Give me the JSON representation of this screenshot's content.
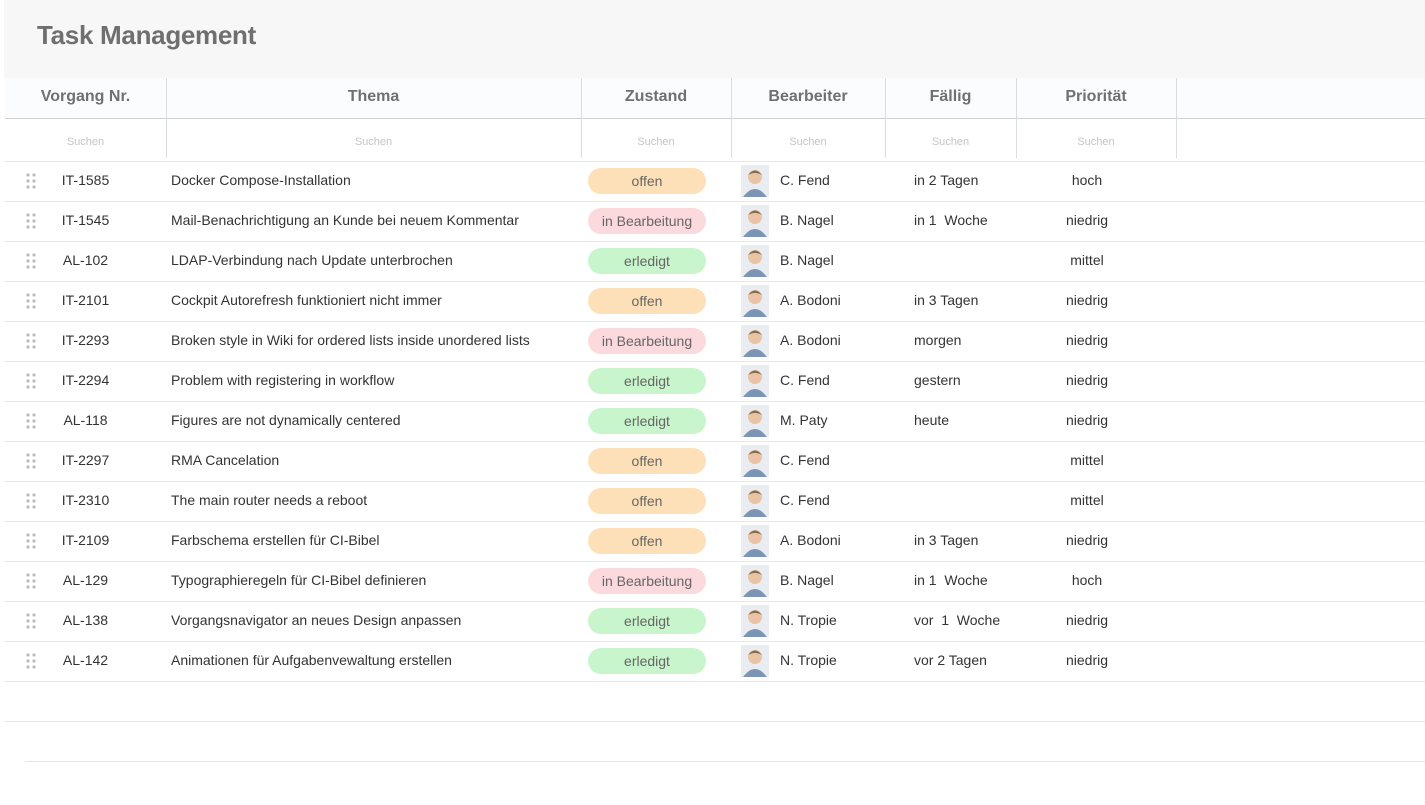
{
  "header": {
    "title": "Task Management"
  },
  "table": {
    "columns": [
      "Vorgang Nr.",
      "Thema",
      "Zustand",
      "Bearbeiter",
      "Fällig",
      "Priorität"
    ],
    "filters": [
      "Suchen",
      "Suchen",
      "Suchen",
      "Suchen",
      "Suchen",
      "Suchen"
    ],
    "rows": [
      {
        "id": "IT-1585",
        "topic": "Docker Compose-Installation",
        "status": "offen",
        "status_color": "#fde0b8",
        "assignee": "C. Fend",
        "due": "in 2 Tagen",
        "priority": "hoch"
      },
      {
        "id": "IT-1545",
        "topic": "Mail-Benachrichtigung an Kunde bei neuem Kommentar",
        "status": "in Bearbeitung",
        "status_color": "#fbd9dd",
        "assignee": "B. Nagel",
        "due": "in 1  Woche",
        "priority": "niedrig"
      },
      {
        "id": "AL-102",
        "topic": "LDAP-Verbindung nach Update unterbrochen",
        "status": "erledigt",
        "status_color": "#c9f5cc",
        "assignee": "B. Nagel",
        "due": null,
        "priority": "mittel"
      },
      {
        "id": "IT-2101",
        "topic": "Cockpit Autorefresh funktioniert nicht immer",
        "status": "offen",
        "status_color": "#fde0b8",
        "assignee": "A. Bodoni",
        "due": "in 3 Tagen",
        "priority": "niedrig"
      },
      {
        "id": "IT-2293",
        "topic": "Broken style in Wiki for ordered lists inside unordered lists",
        "status": "in Bearbeitung",
        "status_color": "#fbd9dd",
        "assignee": "A. Bodoni",
        "due": "morgen",
        "priority": "niedrig"
      },
      {
        "id": "IT-2294",
        "topic": "Problem with registering in workflow",
        "status": "erledigt",
        "status_color": "#c9f5cc",
        "assignee": "C. Fend",
        "due": "gestern",
        "priority": "niedrig"
      },
      {
        "id": "AL-118",
        "topic": "Figures are not dynamically centered",
        "status": "erledigt",
        "status_color": "#c9f5cc",
        "assignee": "M. Paty",
        "due": "heute",
        "priority": "niedrig"
      },
      {
        "id": "IT-2297",
        "topic": "RMA Cancelation",
        "status": "offen",
        "status_color": "#fde0b8",
        "assignee": "C. Fend",
        "due": null,
        "priority": "mittel"
      },
      {
        "id": "IT-2310",
        "topic": "The main router needs a reboot",
        "status": "offen",
        "status_color": "#fde0b8",
        "assignee": "C. Fend",
        "due": null,
        "priority": "mittel"
      },
      {
        "id": "IT-2109",
        "topic": "Farbschema erstellen für CI-Bibel",
        "status": "offen",
        "status_color": "#fde0b8",
        "assignee": "A. Bodoni",
        "due": "in 3 Tagen",
        "priority": "niedrig"
      },
      {
        "id": "AL-129",
        "topic": "Typographieregeln für CI-Bibel definieren",
        "status": "in Bearbeitung",
        "status_color": "#fbd9dd",
        "assignee": "B. Nagel",
        "due": "in 1  Woche",
        "priority": "hoch"
      },
      {
        "id": "AL-138",
        "topic": "Vorgangsnavigator an neues Design anpassen",
        "status": "erledigt",
        "status_color": "#c9f5cc",
        "assignee": "N. Tropie",
        "due": "vor  1  Woche",
        "priority": "niedrig"
      },
      {
        "id": "AL-142",
        "topic": "Animationen für Aufgabenvewaltung erstellen",
        "status": "erledigt",
        "status_color": "#c9f5cc",
        "assignee": "N. Tropie",
        "due": "vor 2 Tagen",
        "priority": "niedrig"
      }
    ]
  }
}
